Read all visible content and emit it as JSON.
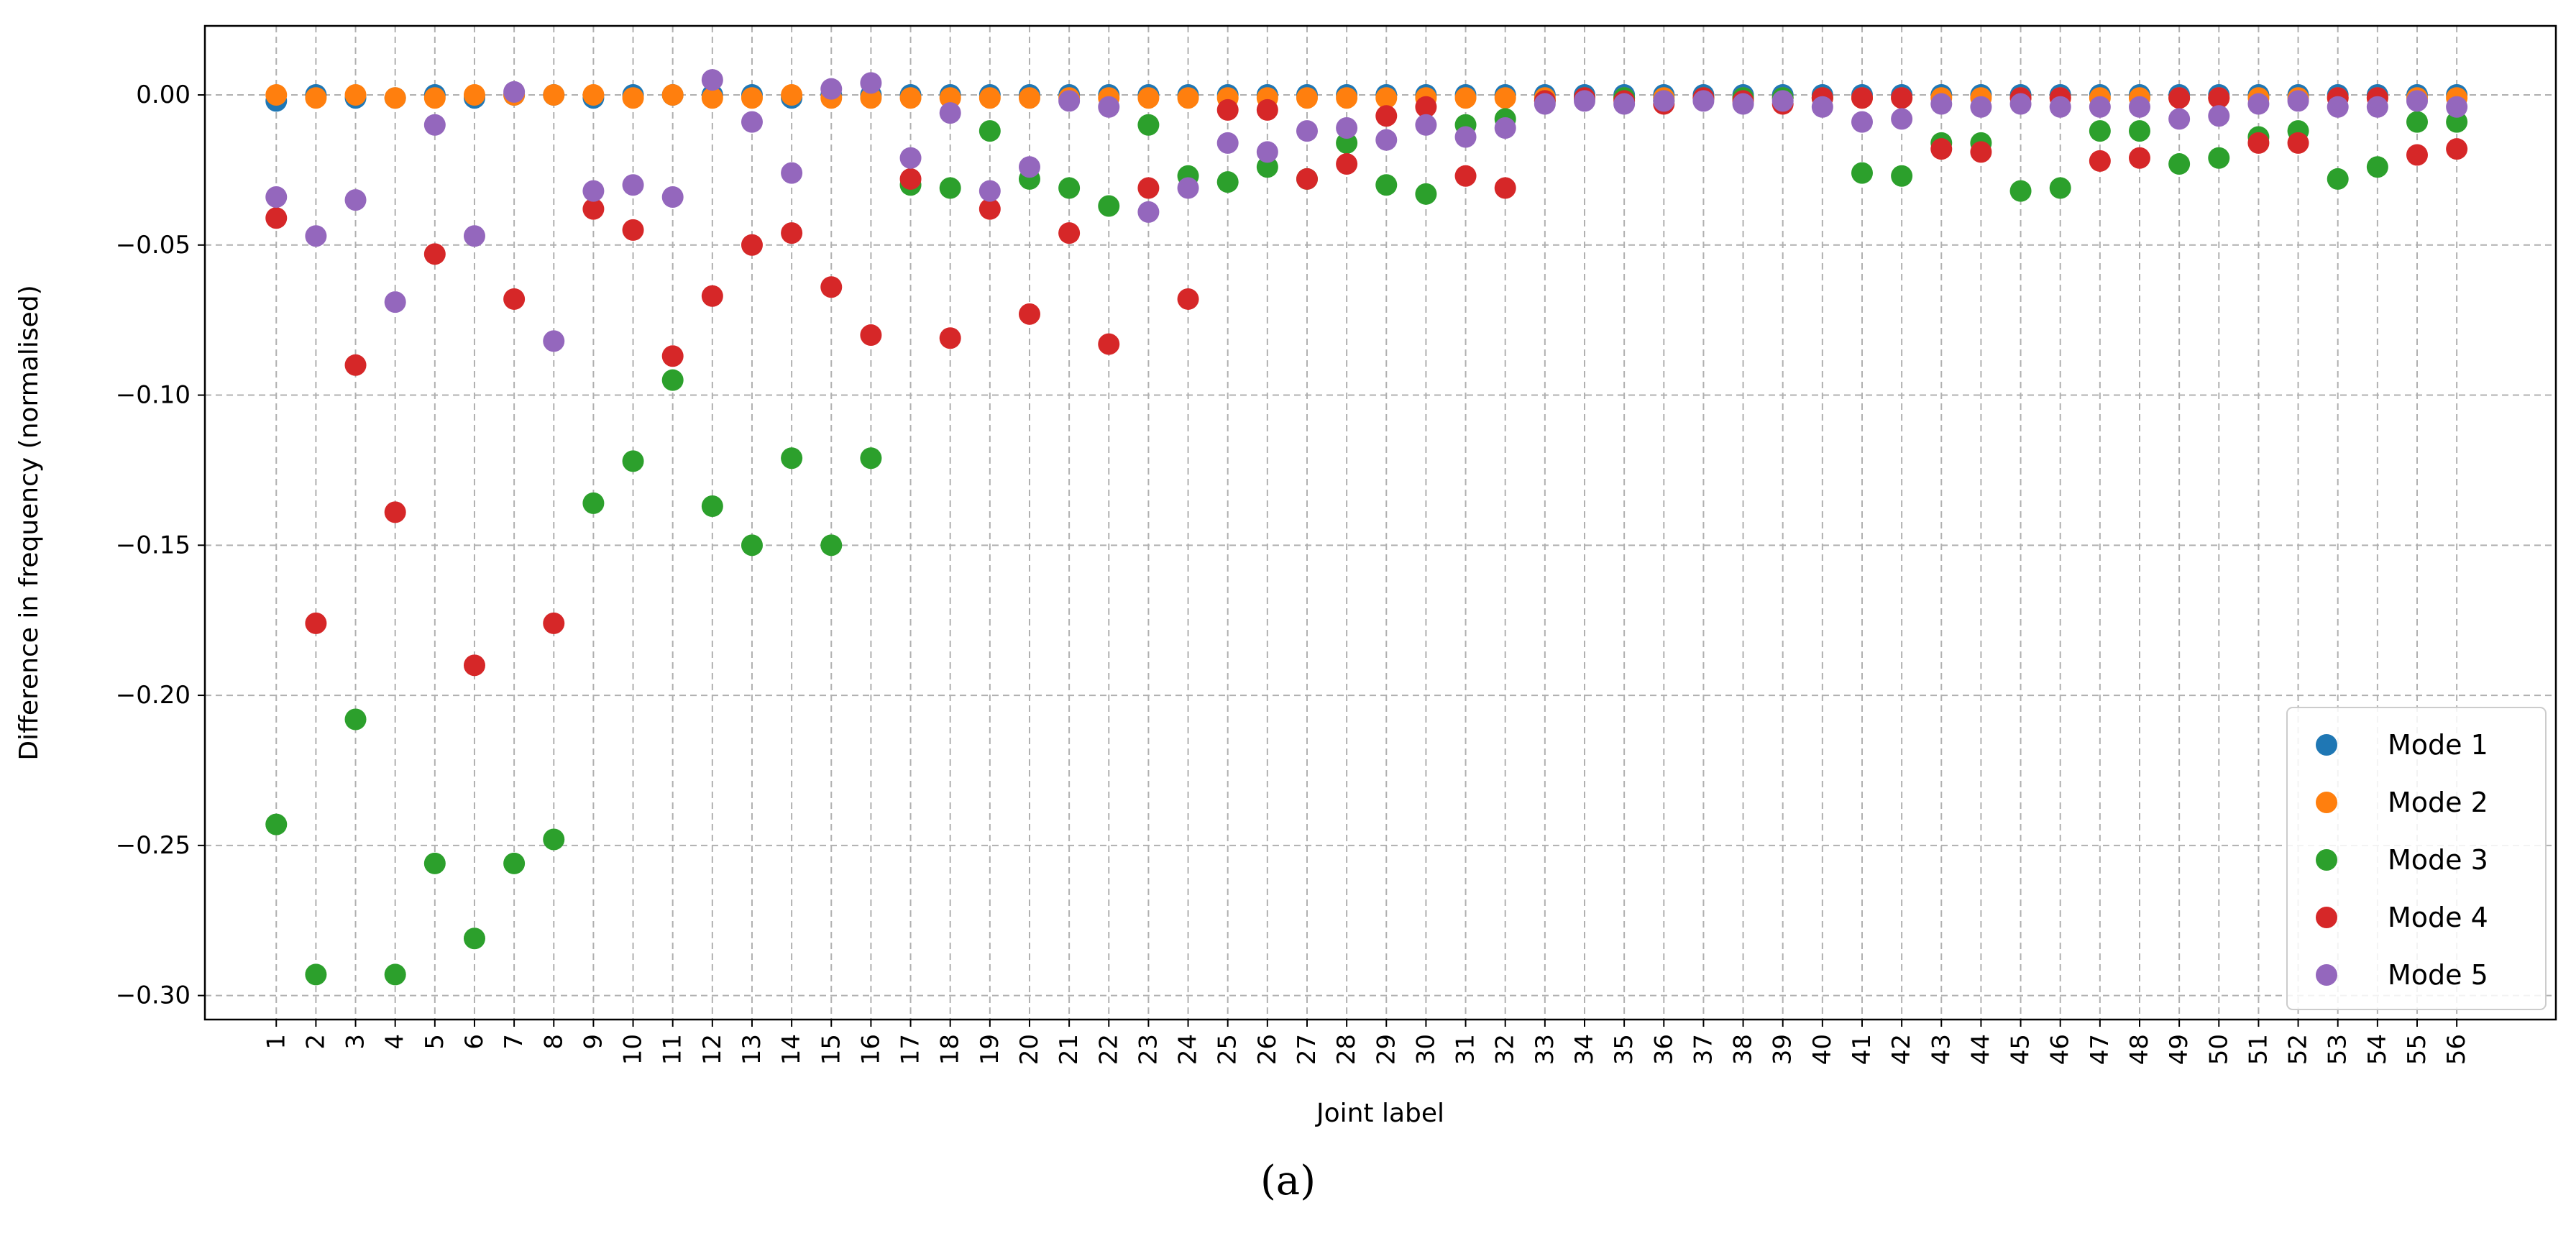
{
  "caption": "(a)",
  "chart_data": {
    "type": "scatter",
    "title": "",
    "xlabel": "Joint label",
    "ylabel": "Difference in frequency (normalised)",
    "x": [
      1,
      2,
      3,
      4,
      5,
      6,
      7,
      8,
      9,
      10,
      11,
      12,
      13,
      14,
      15,
      16,
      17,
      18,
      19,
      20,
      21,
      22,
      23,
      24,
      25,
      26,
      27,
      28,
      29,
      30,
      31,
      32,
      33,
      34,
      35,
      36,
      37,
      38,
      39,
      40,
      41,
      42,
      43,
      44,
      45,
      46,
      47,
      48,
      49,
      50,
      51,
      52,
      53,
      54,
      55,
      56
    ],
    "xticks": [
      "1",
      "2",
      "3",
      "4",
      "5",
      "6",
      "7",
      "8",
      "9",
      "10",
      "11",
      "12",
      "13",
      "14",
      "15",
      "16",
      "17",
      "18",
      "19",
      "20",
      "21",
      "22",
      "23",
      "24",
      "25",
      "26",
      "27",
      "28",
      "29",
      "30",
      "31",
      "32",
      "33",
      "34",
      "35",
      "36",
      "37",
      "38",
      "39",
      "40",
      "41",
      "42",
      "43",
      "44",
      "45",
      "46",
      "47",
      "48",
      "49",
      "50",
      "51",
      "52",
      "53",
      "54",
      "55",
      "56"
    ],
    "yticks": [
      0.0,
      -0.05,
      -0.1,
      -0.15,
      -0.2,
      -0.25,
      -0.3
    ],
    "ytick_labels": [
      "0.00",
      "−0.05",
      "−0.10",
      "−0.15",
      "−0.20",
      "−0.25",
      "−0.30"
    ],
    "xlim": [
      -0.8,
      58.5
    ],
    "ylim": [
      -0.308,
      0.023
    ],
    "grid": true,
    "legend_position": "lower-right",
    "series": [
      {
        "name": "Mode 1",
        "color": "#1f77b4",
        "values": [
          -0.002,
          0.0,
          -0.001,
          -0.001,
          0.0,
          -0.001,
          0.0,
          0.0,
          -0.001,
          0.0,
          0.0,
          0.0,
          0.0,
          -0.001,
          0.0,
          0.0,
          0.0,
          0.0,
          0.0,
          0.0,
          0.0,
          0.0,
          0.0,
          0.0,
          0.0,
          0.0,
          0.0,
          0.0,
          0.0,
          0.0,
          0.0,
          0.0,
          0.0,
          0.0,
          0.0,
          0.0,
          0.0,
          0.0,
          0.0,
          0.0,
          0.0,
          0.0,
          0.0,
          0.0,
          0.0,
          0.0,
          0.0,
          0.0,
          0.0,
          0.0,
          0.0,
          0.0,
          0.0,
          0.0,
          0.0,
          0.0
        ]
      },
      {
        "name": "Mode 2",
        "color": "#ff7f0e",
        "values": [
          0.0,
          -0.001,
          0.0,
          -0.001,
          -0.001,
          0.0,
          0.0,
          0.0,
          0.0,
          -0.001,
          0.0,
          -0.001,
          -0.001,
          0.0,
          -0.001,
          -0.001,
          -0.001,
          -0.001,
          -0.001,
          -0.001,
          -0.001,
          -0.001,
          -0.001,
          -0.001,
          -0.001,
          -0.001,
          -0.001,
          -0.001,
          -0.001,
          -0.001,
          -0.001,
          -0.001,
          -0.001,
          -0.001,
          -0.001,
          -0.001,
          -0.001,
          -0.001,
          -0.001,
          -0.001,
          -0.001,
          -0.001,
          -0.001,
          -0.001,
          -0.001,
          -0.001,
          -0.001,
          -0.001,
          -0.001,
          -0.001,
          -0.001,
          -0.001,
          -0.001,
          -0.001,
          -0.001,
          -0.001
        ]
      },
      {
        "name": "Mode 3",
        "color": "#2ca02c",
        "values": [
          -0.243,
          -0.293,
          -0.208,
          -0.293,
          -0.256,
          -0.281,
          -0.256,
          -0.248,
          -0.136,
          -0.122,
          -0.095,
          -0.137,
          -0.15,
          -0.121,
          -0.15,
          -0.121,
          -0.03,
          -0.031,
          -0.012,
          -0.028,
          -0.031,
          -0.037,
          -0.01,
          -0.027,
          -0.029,
          -0.024,
          -0.028,
          -0.016,
          -0.03,
          -0.033,
          -0.01,
          -0.008,
          -0.002,
          -0.001,
          -0.001,
          -0.002,
          -0.001,
          -0.001,
          -0.001,
          -0.001,
          -0.026,
          -0.027,
          -0.016,
          -0.016,
          -0.032,
          -0.031,
          -0.012,
          -0.012,
          -0.023,
          -0.021,
          -0.014,
          -0.012,
          -0.028,
          -0.024,
          -0.009,
          -0.009
        ]
      },
      {
        "name": "Mode 4",
        "color": "#d62728",
        "values": [
          -0.041,
          -0.176,
          -0.09,
          -0.139,
          -0.053,
          -0.19,
          -0.068,
          -0.176,
          -0.038,
          -0.045,
          -0.087,
          -0.067,
          -0.05,
          -0.046,
          -0.064,
          -0.08,
          -0.028,
          -0.081,
          -0.038,
          -0.073,
          -0.046,
          -0.083,
          -0.031,
          -0.068,
          -0.005,
          -0.005,
          -0.028,
          -0.023,
          -0.007,
          -0.004,
          -0.027,
          -0.031,
          -0.002,
          -0.001,
          -0.002,
          -0.003,
          -0.001,
          -0.002,
          -0.003,
          -0.001,
          -0.001,
          -0.001,
          -0.018,
          -0.019,
          -0.001,
          -0.001,
          -0.022,
          -0.021,
          -0.001,
          -0.001,
          -0.016,
          -0.016,
          -0.001,
          -0.001,
          -0.02,
          -0.018
        ]
      },
      {
        "name": "Mode 5",
        "color": "#9467bd",
        "values": [
          -0.034,
          -0.047,
          -0.035,
          -0.069,
          -0.01,
          -0.047,
          0.001,
          -0.082,
          -0.032,
          -0.03,
          -0.034,
          0.005,
          -0.009,
          -0.026,
          0.002,
          0.004,
          -0.021,
          -0.006,
          -0.032,
          -0.024,
          -0.002,
          -0.004,
          -0.039,
          -0.031,
          -0.016,
          -0.019,
          -0.012,
          -0.011,
          -0.015,
          -0.01,
          -0.014,
          -0.011,
          -0.003,
          -0.002,
          -0.003,
          -0.002,
          -0.002,
          -0.003,
          -0.002,
          -0.004,
          -0.009,
          -0.008,
          -0.003,
          -0.004,
          -0.003,
          -0.004,
          -0.004,
          -0.004,
          -0.008,
          -0.007,
          -0.003,
          -0.002,
          -0.004,
          -0.004,
          -0.002,
          -0.004
        ]
      }
    ]
  }
}
